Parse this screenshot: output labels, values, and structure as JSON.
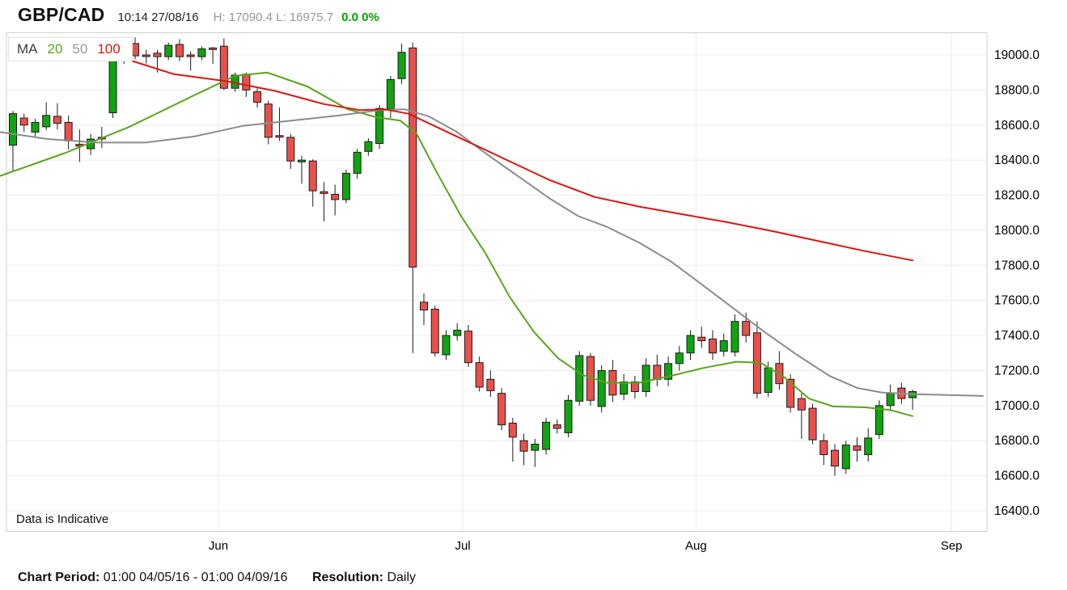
{
  "header": {
    "symbol": "GBP/CAD",
    "timestamp": "10:14 27/08/16",
    "high_label": "H:",
    "high": "17090.4",
    "low_label": "L:",
    "low": "16975.7",
    "change": "0.0 0%"
  },
  "legend": {
    "title": "MA",
    "items": [
      {
        "label": "20",
        "color": "#58a618"
      },
      {
        "label": "50",
        "color": "#999999"
      },
      {
        "label": "100",
        "color": "#dc1510"
      }
    ]
  },
  "watermark": "Data is Indicative",
  "footer": {
    "period_label": "Chart Period:",
    "period_value": "01:00 04/05/16 - 01:00 04/09/16",
    "resolution_label": "Resolution:",
    "resolution_value": "Daily"
  },
  "chart_data": {
    "type": "candlestick",
    "title": "GBP/CAD daily candlesticks with 20/50/100-period moving averages",
    "resolution": "Daily",
    "period": "04/05/16 - 04/09/16",
    "last_high": 17090.4,
    "last_low": 16975.7,
    "y_axis": {
      "ticks": [
        19000,
        18800,
        18600,
        18400,
        18200,
        18000,
        17800,
        17600,
        17400,
        17200,
        17000,
        16800,
        16600,
        16400
      ],
      "decimals": 1
    },
    "x_axis": {
      "months": [
        {
          "label": "Jun",
          "index": 19
        },
        {
          "label": "Jul",
          "index": 41
        },
        {
          "label": "Aug",
          "index": 62
        },
        {
          "label": "Sep",
          "index": 85
        }
      ]
    },
    "colors": {
      "up": "#0fa40f",
      "down": "#e9504c",
      "outline": "#1c1c1c",
      "grid": "#ececec",
      "border": "#cfcfcf",
      "label": "#000000",
      "ma20": "#58a618",
      "ma50": "#8c8c8c",
      "ma100": "#dc1510"
    },
    "candles_format": [
      "open",
      "high",
      "low",
      "close"
    ],
    "candles": [
      [
        18485,
        18680,
        18340,
        18665
      ],
      [
        18640,
        18665,
        18560,
        18600
      ],
      [
        18560,
        18635,
        18530,
        18615
      ],
      [
        18590,
        18730,
        18570,
        18655
      ],
      [
        18650,
        18725,
        18575,
        18610
      ],
      [
        18615,
        18655,
        18460,
        18510
      ],
      [
        18490,
        18575,
        18390,
        18480
      ],
      [
        18465,
        18550,
        18430,
        18520
      ],
      [
        18530,
        18590,
        18470,
        18525
      ],
      [
        18670,
        19005,
        18640,
        18980
      ],
      [
        18985,
        19070,
        18950,
        19050
      ],
      [
        19065,
        19100,
        18975,
        18995
      ],
      [
        19000,
        19030,
        18950,
        18995
      ],
      [
        19010,
        19030,
        18900,
        18990
      ],
      [
        18990,
        19070,
        18970,
        19055
      ],
      [
        19060,
        19090,
        18965,
        18990
      ],
      [
        19000,
        19020,
        18910,
        18995
      ],
      [
        18990,
        19050,
        18970,
        19035
      ],
      [
        19040,
        19045,
        18950,
        19035
      ],
      [
        19050,
        19095,
        18800,
        18810
      ],
      [
        18810,
        18900,
        18790,
        18885
      ],
      [
        18890,
        18900,
        18760,
        18800
      ],
      [
        18790,
        18810,
        18700,
        18730
      ],
      [
        18720,
        18740,
        18490,
        18530
      ],
      [
        18540,
        18700,
        18510,
        18535
      ],
      [
        18530,
        18550,
        18350,
        18395
      ],
      [
        18390,
        18425,
        18265,
        18400
      ],
      [
        18395,
        18405,
        18135,
        18225
      ],
      [
        18220,
        18275,
        18050,
        18210
      ],
      [
        18205,
        18260,
        18085,
        18175
      ],
      [
        18175,
        18345,
        18155,
        18325
      ],
      [
        18325,
        18465,
        18295,
        18445
      ],
      [
        18450,
        18525,
        18425,
        18505
      ],
      [
        18495,
        18715,
        18465,
        18695
      ],
      [
        18690,
        18880,
        18640,
        18860
      ],
      [
        18865,
        19065,
        18835,
        19015
      ],
      [
        19040,
        19070,
        17300,
        17790
      ],
      [
        17590,
        17640,
        17460,
        17545
      ],
      [
        17550,
        17570,
        17280,
        17300
      ],
      [
        17290,
        17430,
        17260,
        17400
      ],
      [
        17400,
        17470,
        17370,
        17430
      ],
      [
        17425,
        17460,
        17220,
        17245
      ],
      [
        17245,
        17280,
        17080,
        17105
      ],
      [
        17150,
        17200,
        17050,
        17085
      ],
      [
        17070,
        17100,
        16860,
        16890
      ],
      [
        16900,
        16930,
        16680,
        16820
      ],
      [
        16800,
        16840,
        16660,
        16740
      ],
      [
        16745,
        16810,
        16650,
        16780
      ],
      [
        16750,
        16930,
        16720,
        16905
      ],
      [
        16890,
        16920,
        16840,
        16870
      ],
      [
        16845,
        17060,
        16820,
        17030
      ],
      [
        17025,
        17310,
        17000,
        17285
      ],
      [
        17280,
        17300,
        17000,
        17030
      ],
      [
        16995,
        17230,
        16960,
        17200
      ],
      [
        17200,
        17260,
        17020,
        17060
      ],
      [
        17065,
        17180,
        17030,
        17135
      ],
      [
        17135,
        17170,
        17040,
        17080
      ],
      [
        17080,
        17270,
        17050,
        17230
      ],
      [
        17230,
        17290,
        17110,
        17150
      ],
      [
        17150,
        17280,
        17110,
        17240
      ],
      [
        17240,
        17340,
        17200,
        17300
      ],
      [
        17300,
        17430,
        17260,
        17400
      ],
      [
        17390,
        17450,
        17330,
        17370
      ],
      [
        17380,
        17430,
        17260,
        17300
      ],
      [
        17310,
        17410,
        17280,
        17370
      ],
      [
        17305,
        17520,
        17280,
        17480
      ],
      [
        17480,
        17530,
        17360,
        17400
      ],
      [
        17415,
        17480,
        17040,
        17070
      ],
      [
        17075,
        17250,
        17050,
        17215
      ],
      [
        17240,
        17310,
        17090,
        17125
      ],
      [
        17150,
        17180,
        16960,
        16990
      ],
      [
        17040,
        17070,
        16810,
        16975
      ],
      [
        16985,
        17010,
        16780,
        16805
      ],
      [
        16800,
        16840,
        16660,
        16720
      ],
      [
        16745,
        16780,
        16600,
        16655
      ],
      [
        16640,
        16800,
        16610,
        16775
      ],
      [
        16770,
        16820,
        16680,
        16745
      ],
      [
        16720,
        16870,
        16680,
        16815
      ],
      [
        16835,
        17030,
        16810,
        17000
      ],
      [
        17000,
        17120,
        16970,
        17070
      ],
      [
        17100,
        17130,
        17010,
        17040
      ],
      [
        17045,
        17090.4,
        16975.7,
        17080
      ]
    ],
    "ma_lines": [
      {
        "name": "ma20",
        "period": 20,
        "color": "#58a618",
        "points": [
          [
            0,
            18310
          ],
          [
            80,
            18440
          ],
          [
            160,
            18590
          ],
          [
            240,
            18770
          ],
          [
            290,
            18880
          ],
          [
            330,
            18900
          ],
          [
            380,
            18820
          ],
          [
            430,
            18690
          ],
          [
            465,
            18645
          ],
          [
            495,
            18625
          ],
          [
            515,
            18550
          ],
          [
            540,
            18330
          ],
          [
            570,
            18080
          ],
          [
            600,
            17870
          ],
          [
            630,
            17620
          ],
          [
            660,
            17420
          ],
          [
            690,
            17270
          ],
          [
            720,
            17175
          ],
          [
            750,
            17130
          ],
          [
            790,
            17130
          ],
          [
            830,
            17170
          ],
          [
            870,
            17215
          ],
          [
            910,
            17250
          ],
          [
            940,
            17245
          ],
          [
            970,
            17160
          ],
          [
            1000,
            17040
          ],
          [
            1030,
            16995
          ],
          [
            1070,
            16990
          ],
          [
            1100,
            16975
          ],
          [
            1128,
            16940
          ]
        ]
      },
      {
        "name": "ma50",
        "period": 50,
        "color": "#8c8c8c",
        "points": [
          [
            0,
            18560
          ],
          [
            60,
            18520
          ],
          [
            120,
            18500
          ],
          [
            180,
            18500
          ],
          [
            240,
            18535
          ],
          [
            300,
            18595
          ],
          [
            360,
            18625
          ],
          [
            420,
            18655
          ],
          [
            470,
            18685
          ],
          [
            500,
            18690
          ],
          [
            530,
            18650
          ],
          [
            565,
            18560
          ],
          [
            600,
            18440
          ],
          [
            640,
            18310
          ],
          [
            680,
            18180
          ],
          [
            715,
            18080
          ],
          [
            750,
            18020
          ],
          [
            790,
            17930
          ],
          [
            830,
            17820
          ],
          [
            865,
            17700
          ],
          [
            905,
            17560
          ],
          [
            945,
            17420
          ],
          [
            985,
            17290
          ],
          [
            1025,
            17170
          ],
          [
            1060,
            17100
          ],
          [
            1090,
            17075
          ],
          [
            1130,
            17065
          ],
          [
            1215,
            17055
          ]
        ]
      },
      {
        "name": "ma100",
        "period": 100,
        "color": "#dc1510",
        "points": [
          [
            55,
            19090
          ],
          [
            140,
            19000
          ],
          [
            215,
            18890
          ],
          [
            280,
            18850
          ],
          [
            340,
            18795
          ],
          [
            400,
            18720
          ],
          [
            445,
            18685
          ],
          [
            475,
            18690
          ],
          [
            505,
            18665
          ],
          [
            560,
            18545
          ],
          [
            620,
            18415
          ],
          [
            680,
            18285
          ],
          [
            735,
            18190
          ],
          [
            790,
            18135
          ],
          [
            845,
            18090
          ],
          [
            900,
            18045
          ],
          [
            955,
            17995
          ],
          [
            1010,
            17940
          ],
          [
            1065,
            17885
          ],
          [
            1128,
            17828
          ]
        ]
      }
    ]
  }
}
